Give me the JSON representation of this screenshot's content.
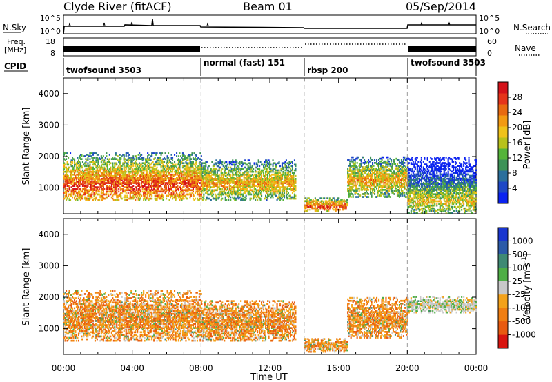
{
  "header": {
    "radar": "Clyde River (fitACF)",
    "beam": "Beam 01",
    "date": "05/Sep/2014"
  },
  "nsky_panel": {
    "left_label": "N.Sky",
    "right_label": "N.Search",
    "left_ticks": [
      "10^5",
      "10^0"
    ],
    "right_ticks": [
      "10^5",
      "10^0"
    ]
  },
  "freq_panel": {
    "left_label": "Freq.",
    "left_unit": "[MHz]",
    "left_ticks": [
      "18",
      "8"
    ],
    "right_label": "Nave",
    "right_ticks": [
      "60",
      "0"
    ]
  },
  "cpid": {
    "label": "CPID",
    "modes": [
      {
        "name": "twofsound 3503",
        "start": 0,
        "end": 8
      },
      {
        "name": "normal (fast) 151",
        "start": 8,
        "end": 14
      },
      {
        "name": "rbsp 200",
        "start": 14,
        "end": 20
      },
      {
        "name": "twofsound 3503",
        "start": 20,
        "end": 24
      }
    ]
  },
  "chart_data": [
    {
      "type": "heatmap",
      "panel": "power",
      "ylabel": "Slant Range [km]",
      "xlabel": "",
      "ylim": [
        180,
        4500
      ],
      "xlim": [
        0,
        24
      ],
      "yticks": [
        "1000",
        "2000",
        "3000",
        "4000"
      ],
      "colorbar": {
        "label": "Power [dB]",
        "ticks": [
          "4",
          "8",
          "12",
          "16",
          "20",
          "24",
          "28"
        ],
        "colors": [
          "#0a22f0",
          "#1e48c6",
          "#2a6f9c",
          "#3d9257",
          "#55b43a",
          "#b8c11c",
          "#f0c21a",
          "#f39a12",
          "#e86a10",
          "#e5341a",
          "#d4121a"
        ]
      },
      "regions": [
        {
          "t0": 0.0,
          "t1": 8.0,
          "r0": 600,
          "r1": 2100,
          "level": "high"
        },
        {
          "t0": 8.0,
          "t1": 13.5,
          "r0": 600,
          "r1": 1900,
          "level": "mid"
        },
        {
          "t0": 14.0,
          "t1": 16.5,
          "r0": 250,
          "r1": 700,
          "level": "high"
        },
        {
          "t0": 16.5,
          "t1": 20.0,
          "r0": 700,
          "r1": 2000,
          "level": "mid"
        },
        {
          "t0": 20.0,
          "t1": 24.0,
          "r0": 200,
          "r1": 2000,
          "level": "mixed"
        }
      ]
    },
    {
      "type": "heatmap",
      "panel": "velocity",
      "ylabel": "Slant Range [km]",
      "xlabel": "Time UT",
      "ylim": [
        180,
        4500
      ],
      "xlim": [
        0,
        24
      ],
      "yticks": [
        "1000",
        "2000",
        "3000",
        "4000"
      ],
      "xticks": [
        "00:00",
        "04:00",
        "08:00",
        "12:00",
        "16:00",
        "20:00",
        "00:00"
      ],
      "colorbar": {
        "label": "Velocity [m s",
        "label_sup": "-1",
        "label_end": "]",
        "ticks": [
          "1000",
          "500",
          "100",
          "25",
          "-25",
          "-100",
          "-500",
          "-1000"
        ],
        "colors": [
          "#1a36d0",
          "#2b5aa8",
          "#3f8a74",
          "#4fae46",
          "#c8c8c8",
          "#f4a21a",
          "#f07e12",
          "#e85a10",
          "#d8150f"
        ]
      },
      "regions": [
        {
          "t0": 0.0,
          "t1": 8.0,
          "r0": 600,
          "r1": 2200,
          "velocity": "negative"
        },
        {
          "t0": 8.0,
          "t1": 13.5,
          "r0": 600,
          "r1": 1900,
          "velocity": "negative"
        },
        {
          "t0": 14.0,
          "t1": 16.5,
          "r0": 250,
          "r1": 700,
          "velocity": "negative"
        },
        {
          "t0": 16.5,
          "t1": 20.0,
          "r0": 700,
          "r1": 2000,
          "velocity": "negative"
        },
        {
          "t0": 20.0,
          "t1": 24.0,
          "r0": 1500,
          "r1": 2000,
          "velocity": "near-zero"
        }
      ]
    }
  ]
}
